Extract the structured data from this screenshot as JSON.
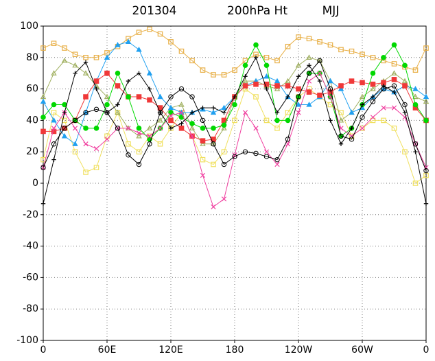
{
  "chart_data": {
    "type": "line",
    "title": [
      "201304",
      "200hPa Ht",
      "MJJ"
    ],
    "x": [
      0,
      10,
      20,
      30,
      40,
      50,
      60,
      70,
      80,
      90,
      100,
      110,
      120,
      130,
      140,
      150,
      160,
      170,
      180,
      190,
      200,
      210,
      220,
      230,
      240,
      250,
      260,
      270,
      280,
      290,
      300,
      310,
      320,
      330,
      340,
      350,
      360
    ],
    "xlim": [
      0,
      360
    ],
    "xticks": [
      {
        "value": 0,
        "label": "0"
      },
      {
        "value": 60,
        "label": "60E"
      },
      {
        "value": 120,
        "label": "120E"
      },
      180,
      {
        "value": 240,
        "label": "120W"
      },
      {
        "value": 300,
        "label": "60W"
      },
      {
        "value": 360,
        "label": "0"
      }
    ],
    "ylim": [
      -100,
      100
    ],
    "yticks": [
      -100,
      -80,
      -60,
      -40,
      -20,
      0,
      20,
      40,
      60,
      80,
      100
    ],
    "grid": true,
    "series": [
      {
        "color": "#e8b048",
        "marker": "square-open",
        "values": [
          86,
          89,
          86,
          82,
          80,
          80,
          83,
          87,
          92,
          96,
          98,
          95,
          90,
          84,
          78,
          72,
          69,
          69,
          72,
          78,
          82,
          80,
          78,
          87,
          93,
          92,
          90,
          88,
          85,
          84,
          82,
          80,
          78,
          76,
          74,
          72,
          86
        ]
      },
      {
        "color": "#f0e060",
        "marker": "square-open",
        "values": [
          15,
          45,
          40,
          20,
          7,
          10,
          30,
          45,
          25,
          20,
          30,
          25,
          35,
          45,
          30,
          15,
          12,
          20,
          40,
          60,
          55,
          40,
          35,
          45,
          55,
          60,
          55,
          50,
          45,
          30,
          35,
          40,
          40,
          35,
          20,
          0,
          5
        ]
      },
      {
        "color": "#a0b060",
        "marker": "triangle-open",
        "values": [
          55,
          70,
          78,
          75,
          70,
          62,
          55,
          45,
          35,
          30,
          35,
          40,
          48,
          50,
          35,
          25,
          25,
          35,
          55,
          65,
          65,
          62,
          60,
          65,
          75,
          80,
          78,
          65,
          40,
          45,
          55,
          60,
          65,
          70,
          65,
          55,
          52
        ]
      },
      {
        "color": "#20a0f0",
        "marker": "triangle",
        "values": [
          52,
          40,
          30,
          25,
          45,
          65,
          80,
          88,
          90,
          85,
          70,
          55,
          48,
          45,
          45,
          47,
          45,
          48,
          55,
          62,
          65,
          68,
          65,
          55,
          50,
          50,
          55,
          65,
          60,
          45,
          48,
          55,
          60,
          58,
          62,
          60,
          55
        ]
      },
      {
        "color": "#f03838",
        "marker": "square-filled",
        "values": [
          33,
          33,
          35,
          40,
          55,
          65,
          70,
          62,
          55,
          55,
          53,
          48,
          40,
          35,
          30,
          27,
          28,
          40,
          55,
          62,
          63,
          63,
          62,
          62,
          60,
          58,
          56,
          58,
          62,
          65,
          64,
          63,
          64,
          66,
          62,
          48,
          40
        ]
      },
      {
        "color": "#00d800",
        "marker": "circle-filled",
        "values": [
          42,
          50,
          50,
          40,
          35,
          35,
          50,
          70,
          55,
          35,
          28,
          35,
          45,
          42,
          38,
          35,
          35,
          37,
          50,
          75,
          88,
          75,
          40,
          40,
          55,
          70,
          70,
          55,
          30,
          35,
          50,
          70,
          80,
          88,
          75,
          50,
          40
        ]
      },
      {
        "color": "#f040a0",
        "marker": "x",
        "values": [
          10,
          35,
          45,
          35,
          25,
          22,
          28,
          35,
          35,
          32,
          30,
          35,
          43,
          45,
          30,
          5,
          -15,
          -10,
          18,
          45,
          35,
          20,
          12,
          25,
          45,
          65,
          70,
          55,
          35,
          30,
          35,
          42,
          48,
          48,
          42,
          25,
          10
        ]
      },
      {
        "color": "#000000",
        "marker": "plus",
        "values": [
          -13,
          15,
          45,
          70,
          77,
          60,
          45,
          50,
          65,
          70,
          60,
          45,
          35,
          38,
          45,
          48,
          48,
          45,
          55,
          68,
          80,
          60,
          45,
          55,
          68,
          75,
          65,
          40,
          25,
          35,
          50,
          55,
          62,
          58,
          45,
          20,
          -13
        ]
      },
      {
        "color": "#000000",
        "marker": "circle-open",
        "values": [
          10,
          25,
          35,
          40,
          45,
          47,
          45,
          35,
          18,
          12,
          25,
          45,
          55,
          60,
          55,
          40,
          25,
          12,
          17,
          20,
          19,
          17,
          15,
          28,
          55,
          70,
          78,
          60,
          30,
          28,
          42,
          52,
          60,
          62,
          50,
          25,
          8
        ]
      }
    ]
  }
}
